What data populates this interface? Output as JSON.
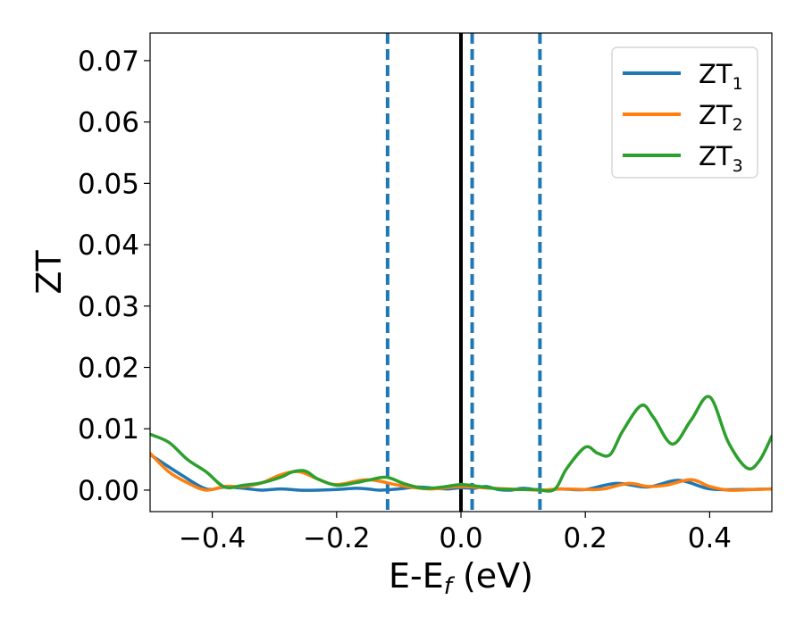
{
  "chart_data": {
    "type": "line",
    "xlabel_main": "E-E",
    "xlabel_sub": "f",
    "xlabel_unit": " (eV)",
    "ylabel": "ZT",
    "xlim": [
      -0.5,
      0.5
    ],
    "ylim": [
      -0.0035,
      0.0745
    ],
    "xticks": [
      -0.4,
      -0.2,
      0.0,
      0.2,
      0.4
    ],
    "xtick_labels": [
      "−0.4",
      "−0.2",
      "0.0",
      "0.2",
      "0.4"
    ],
    "yticks": [
      0.0,
      0.01,
      0.02,
      0.03,
      0.04,
      0.05,
      0.06,
      0.07
    ],
    "ytick_labels": [
      "0.00",
      "0.01",
      "0.02",
      "0.03",
      "0.04",
      "0.05",
      "0.06",
      "0.07"
    ],
    "grid": false,
    "legend_position": "top-right",
    "vlines": [
      {
        "x": 0.0,
        "style": "solid",
        "color": "#000000"
      },
      {
        "x": -0.118,
        "style": "dashed",
        "color": "#1f77b4"
      },
      {
        "x": 0.018,
        "style": "dashed",
        "color": "#1f77b4"
      },
      {
        "x": 0.127,
        "style": "dashed",
        "color": "#1f77b4"
      }
    ],
    "series": [
      {
        "name": "ZT",
        "name_sub": "1",
        "color": "#1f77b4",
        "x": [
          -0.5,
          -0.45,
          -0.41,
          -0.38,
          -0.35,
          -0.32,
          -0.29,
          -0.26,
          -0.23,
          -0.2,
          -0.17,
          -0.15,
          -0.13,
          -0.1,
          -0.07,
          -0.04,
          -0.02,
          0.0,
          0.02,
          0.04,
          0.06,
          0.08,
          0.1,
          0.13,
          0.16,
          0.2,
          0.25,
          0.3,
          0.35,
          0.4,
          0.45,
          0.5
        ],
        "y": [
          0.0058,
          0.0025,
          0.0002,
          0.0005,
          0.0003,
          0.0,
          0.0002,
          0.0,
          0.0,
          0.0001,
          0.0003,
          0.0002,
          0.0,
          0.0002,
          0.0005,
          0.0003,
          0.0002,
          0.0004,
          0.0003,
          0.0006,
          0.0001,
          0.0,
          0.0003,
          0.0,
          0.0002,
          0.0001,
          0.0011,
          0.0005,
          0.0016,
          0.0002,
          0.0001,
          0.0002
        ]
      },
      {
        "name": "ZT",
        "name_sub": "2",
        "color": "#ff7f0e",
        "x": [
          -0.5,
          -0.47,
          -0.44,
          -0.41,
          -0.38,
          -0.35,
          -0.32,
          -0.29,
          -0.26,
          -0.23,
          -0.2,
          -0.15,
          -0.1,
          -0.05,
          0.0,
          0.05,
          0.1,
          0.13,
          0.16,
          0.2,
          0.23,
          0.27,
          0.3,
          0.33,
          0.37,
          0.4,
          0.43,
          0.47,
          0.5
        ],
        "y": [
          0.006,
          0.003,
          0.0012,
          0.0,
          0.0006,
          0.0006,
          0.0012,
          0.0025,
          0.003,
          0.0018,
          0.0009,
          0.0017,
          0.0008,
          0.0002,
          0.0006,
          0.0003,
          0.0001,
          0.0,
          0.0002,
          0.0001,
          0.0002,
          0.0011,
          0.0006,
          0.0008,
          0.0017,
          0.0006,
          0.0,
          0.0001,
          0.0002
        ]
      },
      {
        "name": "ZT",
        "name_sub": "3",
        "color": "#2ca02c",
        "x": [
          -0.5,
          -0.47,
          -0.44,
          -0.41,
          -0.38,
          -0.35,
          -0.32,
          -0.29,
          -0.27,
          -0.25,
          -0.23,
          -0.2,
          -0.17,
          -0.15,
          -0.12,
          -0.09,
          -0.06,
          -0.03,
          0.0,
          0.03,
          0.06,
          0.09,
          0.12,
          0.15,
          0.17,
          0.2,
          0.22,
          0.24,
          0.26,
          0.29,
          0.31,
          0.34,
          0.37,
          0.4,
          0.43,
          0.46,
          0.48,
          0.5
        ],
        "y": [
          0.0091,
          0.0078,
          0.005,
          0.003,
          0.0005,
          0.0008,
          0.0012,
          0.0021,
          0.003,
          0.0031,
          0.0018,
          0.0008,
          0.0012,
          0.0016,
          0.0021,
          0.001,
          0.0003,
          0.0005,
          0.0009,
          0.0006,
          0.0002,
          0.0001,
          0.0001,
          0.0001,
          0.0035,
          0.007,
          0.006,
          0.0058,
          0.0096,
          0.0138,
          0.0118,
          0.0075,
          0.0114,
          0.0152,
          0.0078,
          0.0036,
          0.0048,
          0.0088
        ]
      }
    ]
  }
}
